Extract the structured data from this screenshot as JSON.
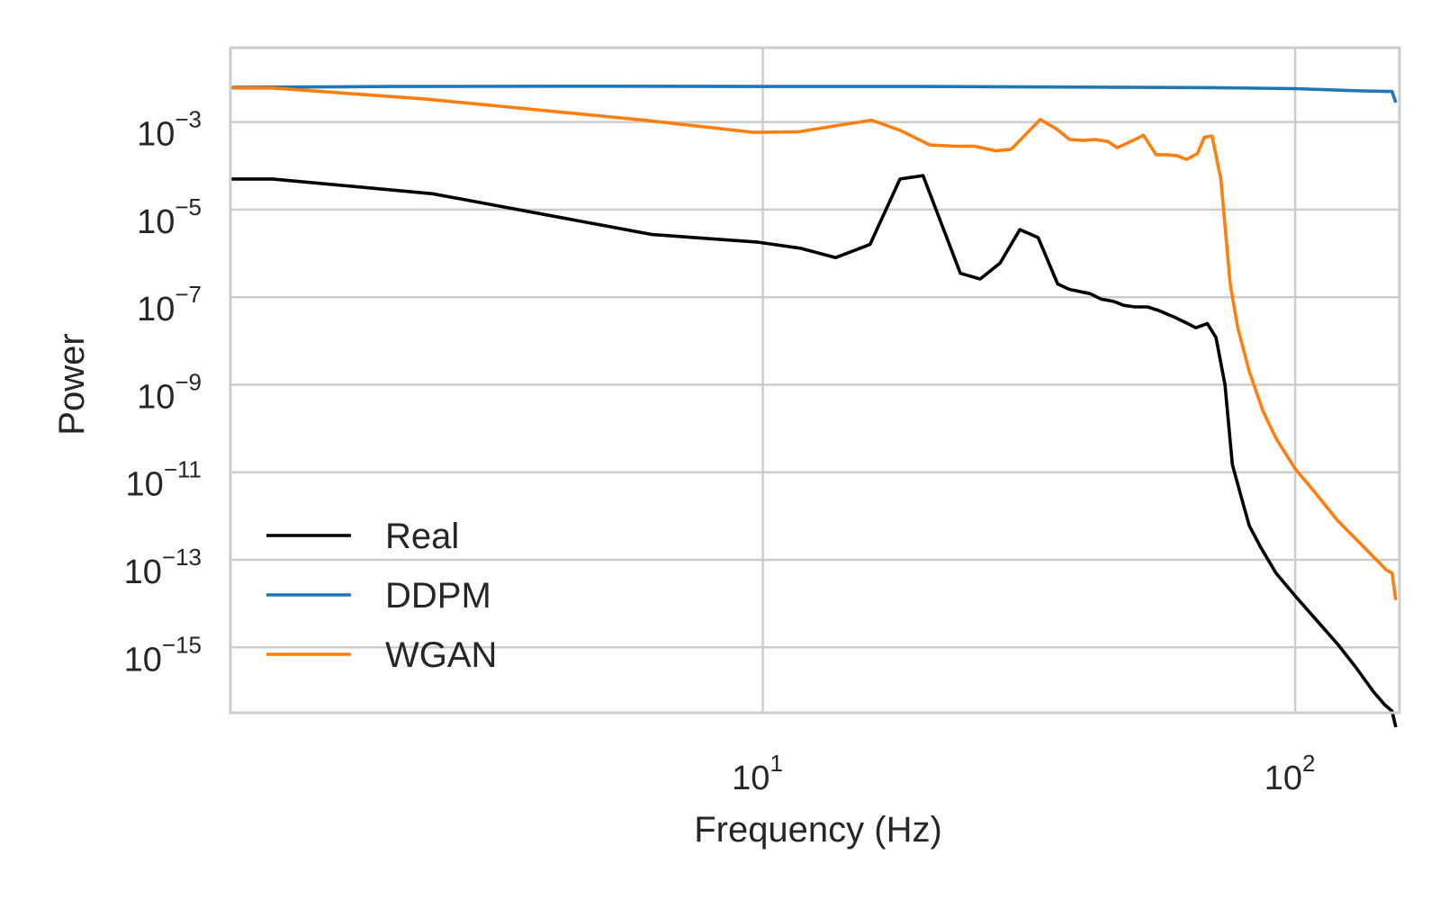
{
  "chart_data": {
    "type": "line",
    "title": "",
    "xlabel": "Frequency (Hz)",
    "ylabel": "Power",
    "xscale": "log",
    "yscale": "log",
    "xlim": [
      1.0,
      157
    ],
    "ylim": [
      3.2e-17,
      0.05
    ],
    "grid": true,
    "legend_position": "lower-left",
    "x_ticks": [
      {
        "value": 10,
        "base": "10",
        "exp": "1"
      },
      {
        "value": 100,
        "base": "10",
        "exp": "2"
      }
    ],
    "y_ticks": [
      {
        "value": 0.001,
        "base": "10",
        "exp": "−3"
      },
      {
        "value": 1e-05,
        "base": "10",
        "exp": "−5"
      },
      {
        "value": 1e-07,
        "base": "10",
        "exp": "−7"
      },
      {
        "value": 1e-09,
        "base": "10",
        "exp": "−9"
      },
      {
        "value": 1e-11,
        "base": "10",
        "exp": "−11"
      },
      {
        "value": 1e-13,
        "base": "10",
        "exp": "−13"
      },
      {
        "value": 1e-15,
        "base": "10",
        "exp": "−15"
      }
    ],
    "series": [
      {
        "name": "Real",
        "color": "#000000",
        "points": [
          [
            1.0,
            5e-05
          ],
          [
            1.2,
            5e-05
          ],
          [
            2.4,
            2.3e-05
          ],
          [
            6.2,
            2.7e-06
          ],
          [
            9.8,
            1.8e-06
          ],
          [
            11.8,
            1.3e-06
          ],
          [
            13.7,
            8e-07
          ],
          [
            15.9,
            1.6e-06
          ],
          [
            18.1,
            5e-05
          ],
          [
            20.0,
            6e-05
          ],
          [
            23.5,
            3.5e-07
          ],
          [
            25.6,
            2.6e-07
          ],
          [
            27.9,
            6e-07
          ],
          [
            30.4,
            3.5e-06
          ],
          [
            32.9,
            2.3e-06
          ],
          [
            35.8,
            2e-07
          ],
          [
            37.7,
            1.5e-07
          ],
          [
            41.2,
            1.2e-07
          ],
          [
            43.2,
            9e-08
          ],
          [
            45.6,
            8e-08
          ],
          [
            47.7,
            6.5e-08
          ],
          [
            50.0,
            6e-08
          ],
          [
            52.8,
            6e-08
          ],
          [
            55.3,
            5e-08
          ],
          [
            59.3,
            3.5e-08
          ],
          [
            62.8,
            2.5e-08
          ],
          [
            65.1,
            2e-08
          ],
          [
            68.4,
            2.5e-08
          ],
          [
            71.0,
            1.2e-08
          ],
          [
            73.8,
            1e-09
          ],
          [
            76.2,
            1.5e-11
          ],
          [
            79.0,
            3e-12
          ],
          [
            82.0,
            6e-13
          ],
          [
            86.0,
            2e-13
          ],
          [
            92.0,
            5e-14
          ],
          [
            100.0,
            1.5e-14
          ],
          [
            110.0,
            4e-15
          ],
          [
            120.0,
            1.2e-15
          ],
          [
            130.0,
            3.5e-16
          ],
          [
            140.0,
            1e-16
          ],
          [
            147.0,
            5e-17
          ],
          [
            152.0,
            3.5e-17
          ],
          [
            154.5,
            1.5e-17
          ]
        ]
      },
      {
        "name": "DDPM",
        "color": "#1f77b4",
        "points": [
          [
            1.0,
            0.0062
          ],
          [
            2.0,
            0.0065
          ],
          [
            5.0,
            0.0066
          ],
          [
            10.0,
            0.0065
          ],
          [
            20.0,
            0.0065
          ],
          [
            40.0,
            0.0063
          ],
          [
            70.0,
            0.0061
          ],
          [
            100.0,
            0.0058
          ],
          [
            130.0,
            0.0052
          ],
          [
            148.0,
            0.005
          ],
          [
            152.0,
            0.005
          ],
          [
            154.5,
            0.0028
          ]
        ]
      },
      {
        "name": "WGAN",
        "color": "#ff7f0e",
        "points": [
          [
            1.0,
            0.006
          ],
          [
            1.2,
            0.006
          ],
          [
            2.3,
            0.0034
          ],
          [
            6.0,
            0.0011
          ],
          [
            9.6,
            0.00058
          ],
          [
            11.7,
            0.0006
          ],
          [
            13.9,
            0.00085
          ],
          [
            16.0,
            0.0011
          ],
          [
            18.1,
            0.00065
          ],
          [
            20.6,
            0.0003
          ],
          [
            23.0,
            0.00028
          ],
          [
            25.0,
            0.00028
          ],
          [
            27.4,
            0.00022
          ],
          [
            29.3,
            0.00024
          ],
          [
            31.3,
            0.00055
          ],
          [
            33.2,
            0.00115
          ],
          [
            35.6,
            0.0007
          ],
          [
            37.7,
            0.0004
          ],
          [
            40.0,
            0.00038
          ],
          [
            42.0,
            0.0004
          ],
          [
            44.5,
            0.00036
          ],
          [
            46.3,
            0.00026
          ],
          [
            49.1,
            0.00036
          ],
          [
            51.9,
            0.0005
          ],
          [
            54.8,
            0.00018
          ],
          [
            57.5,
            0.00018
          ],
          [
            60.0,
            0.00017
          ],
          [
            62.5,
            0.00014
          ],
          [
            65.5,
            0.00019
          ],
          [
            67.5,
            0.00045
          ],
          [
            69.8,
            0.00048
          ],
          [
            72.5,
            5e-05
          ],
          [
            75.5,
            2e-07
          ],
          [
            78.0,
            2e-08
          ],
          [
            82.0,
            2e-09
          ],
          [
            87.0,
            2.5e-10
          ],
          [
            92.0,
            6e-11
          ],
          [
            100.0,
            1.2e-11
          ],
          [
            110.0,
            3e-12
          ],
          [
            120.0,
            8e-13
          ],
          [
            130.0,
            3e-13
          ],
          [
            140.0,
            1.2e-13
          ],
          [
            148.0,
            6e-14
          ],
          [
            152.0,
            5e-14
          ],
          [
            154.5,
            1.2e-14
          ]
        ]
      }
    ]
  }
}
